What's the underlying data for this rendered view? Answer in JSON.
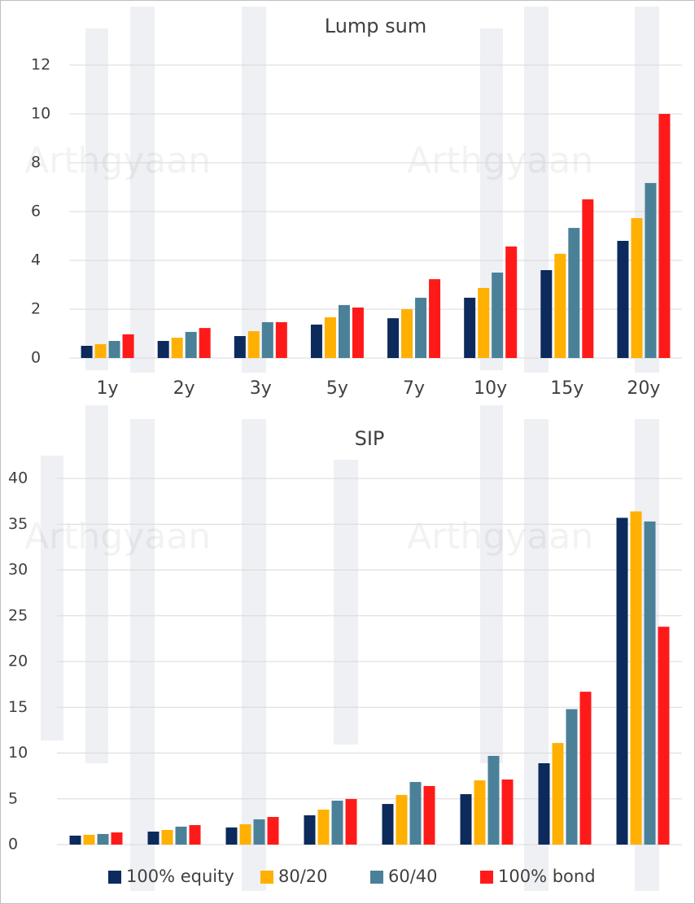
{
  "watermark": "Arthgyaan",
  "chart_data": [
    {
      "type": "bar",
      "title": "Lump sum",
      "categories": [
        "1y",
        "2y",
        "3y",
        "5y",
        "7y",
        "10y",
        "15y",
        "20y"
      ],
      "series": [
        {
          "color": "#0c2a5b",
          "values": [
            0.5,
            0.7,
            0.9,
            1.37,
            1.63,
            2.47,
            3.6,
            4.8
          ]
        },
        {
          "color": "#ffb000",
          "values": [
            0.57,
            0.83,
            1.1,
            1.67,
            2.0,
            2.87,
            4.27,
            5.73
          ]
        },
        {
          "color": "#4a8198",
          "values": [
            0.7,
            1.07,
            1.47,
            2.17,
            2.47,
            3.5,
            5.33,
            7.17
          ]
        },
        {
          "color": "#ff1a1a",
          "values": [
            0.97,
            1.23,
            1.47,
            2.07,
            3.23,
            4.57,
            6.5,
            10.0
          ]
        }
      ],
      "ylim": [
        0,
        12
      ],
      "yticks": [
        0,
        2,
        4,
        6,
        8,
        10,
        12
      ],
      "grid": true
    },
    {
      "type": "bar",
      "title": "SIP",
      "categories": [
        null,
        null,
        null,
        null,
        null,
        null,
        null,
        null
      ],
      "series": [
        {
          "name": "100% equity",
          "color": "#0c2a5b",
          "values": [
            0.98,
            1.42,
            1.87,
            3.2,
            4.44,
            5.51,
            8.89,
            35.7
          ]
        },
        {
          "name": "80/20",
          "color": "#ffb000",
          "values": [
            1.07,
            1.6,
            2.22,
            3.82,
            5.42,
            7.02,
            11.1,
            36.4
          ]
        },
        {
          "name": "60/40",
          "color": "#4a8198",
          "values": [
            1.16,
            1.96,
            2.76,
            4.8,
            6.84,
            9.69,
            14.8,
            35.3
          ]
        },
        {
          "name": "100% bond",
          "color": "#ff1a1a",
          "values": [
            1.33,
            2.13,
            3.02,
            4.98,
            6.4,
            7.11,
            16.7,
            23.8
          ]
        }
      ],
      "ylim": [
        0,
        40
      ],
      "yticks": [
        0,
        5,
        10,
        15,
        20,
        25,
        30,
        35,
        40
      ],
      "grid": true,
      "legend": "bottom"
    }
  ]
}
